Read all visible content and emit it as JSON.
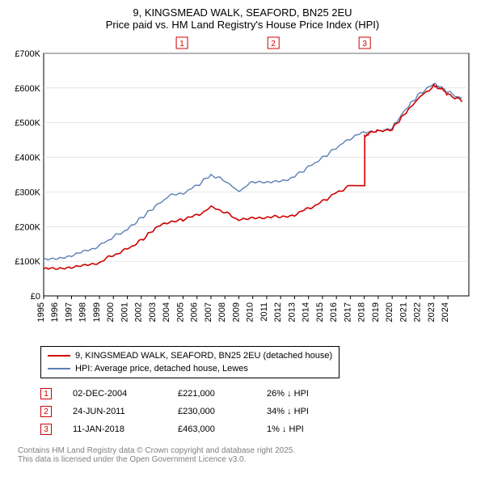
{
  "title_line1": "9, KINGSMEAD WALK, SEAFORD, BN25 2EU",
  "title_line2": "Price paid vs. HM Land Registry's House Price Index (HPI)",
  "chart": {
    "type": "line",
    "background_color": "#ffffff",
    "grid_color": "#d8d8d8",
    "axis_color": "#000000",
    "xlim": [
      1995,
      2025.5
    ],
    "ylim": [
      0,
      700000
    ],
    "ytick_step": 100000,
    "ytick_labels": [
      "£0",
      "£100K",
      "£200K",
      "£300K",
      "£400K",
      "£500K",
      "£600K",
      "£700K"
    ],
    "xtick_step": 1,
    "xtick_labels": [
      "1995",
      "1996",
      "1997",
      "1998",
      "1999",
      "2000",
      "2001",
      "2002",
      "2003",
      "2004",
      "2005",
      "2006",
      "2007",
      "2008",
      "2009",
      "2010",
      "2011",
      "2012",
      "2013",
      "2014",
      "2015",
      "2016",
      "2017",
      "2018",
      "2019",
      "2020",
      "2021",
      "2022",
      "2023",
      "2024"
    ],
    "label_fontsize": 11,
    "series": [
      {
        "name": "price_paid",
        "label": "9, KINGSMEAD WALK, SEAFORD, BN25 2EU (detached house)",
        "color": "#d00000",
        "line_width": 1.6,
        "data": [
          [
            1995,
            78000
          ],
          [
            1996,
            77000
          ],
          [
            1997,
            80000
          ],
          [
            1998,
            87000
          ],
          [
            1999,
            97000
          ],
          [
            2000,
            118000
          ],
          [
            2001,
            135000
          ],
          [
            2002,
            160000
          ],
          [
            2003,
            195000
          ],
          [
            2004,
            215000
          ],
          [
            2004.92,
            221000
          ],
          [
            2005,
            220000
          ],
          [
            2006,
            232000
          ],
          [
            2007,
            255000
          ],
          [
            2008,
            243000
          ],
          [
            2009,
            218000
          ],
          [
            2010,
            228000
          ],
          [
            2011,
            225000
          ],
          [
            2011.48,
            230000
          ],
          [
            2012,
            228000
          ],
          [
            2013,
            235000
          ],
          [
            2014,
            252000
          ],
          [
            2015,
            272000
          ],
          [
            2016,
            298000
          ],
          [
            2017,
            318000
          ],
          [
            2018.03,
            463000
          ],
          [
            2018.5,
            472000
          ],
          [
            2019,
            478000
          ],
          [
            2020,
            482000
          ],
          [
            2021,
            530000
          ],
          [
            2022,
            575000
          ],
          [
            2023,
            605000
          ],
          [
            2023.5,
            598000
          ],
          [
            2024,
            583000
          ],
          [
            2025,
            562000
          ]
        ]
      },
      {
        "name": "hpi",
        "label": "HPI: Average price, detached house, Lewes",
        "color": "#5b7fb5",
        "line_width": 1.4,
        "data": [
          [
            1995,
            108000
          ],
          [
            1996,
            110000
          ],
          [
            1997,
            117000
          ],
          [
            1998,
            128000
          ],
          [
            1999,
            145000
          ],
          [
            2000,
            170000
          ],
          [
            2001,
            192000
          ],
          [
            2002,
            225000
          ],
          [
            2003,
            258000
          ],
          [
            2004,
            288000
          ],
          [
            2005,
            297000
          ],
          [
            2006,
            318000
          ],
          [
            2007,
            350000
          ],
          [
            2008,
            332000
          ],
          [
            2009,
            302000
          ],
          [
            2010,
            330000
          ],
          [
            2011,
            325000
          ],
          [
            2012,
            330000
          ],
          [
            2013,
            345000
          ],
          [
            2014,
            372000
          ],
          [
            2015,
            398000
          ],
          [
            2016,
            428000
          ],
          [
            2017,
            455000
          ],
          [
            2018,
            472000
          ],
          [
            2019,
            478000
          ],
          [
            2020,
            485000
          ],
          [
            2021,
            540000
          ],
          [
            2022,
            585000
          ],
          [
            2023,
            612000
          ],
          [
            2023.5,
            602000
          ],
          [
            2024,
            588000
          ],
          [
            2025,
            570000
          ]
        ]
      }
    ],
    "markers": [
      {
        "n": "1",
        "x": 2004.92
      },
      {
        "n": "2",
        "x": 2011.48
      },
      {
        "n": "3",
        "x": 2018.03
      }
    ]
  },
  "legend": {
    "items": [
      {
        "color": "#d00000",
        "label": "9, KINGSMEAD WALK, SEAFORD, BN25 2EU (detached house)"
      },
      {
        "color": "#5b7fb5",
        "label": "HPI: Average price, detached house, Lewes"
      }
    ]
  },
  "events": [
    {
      "n": "1",
      "date": "02-DEC-2004",
      "price": "£221,000",
      "delta": "26% ↓ HPI"
    },
    {
      "n": "2",
      "date": "24-JUN-2011",
      "price": "£230,000",
      "delta": "34% ↓ HPI"
    },
    {
      "n": "3",
      "date": "11-JAN-2018",
      "price": "£463,000",
      "delta": "1% ↓ HPI"
    }
  ],
  "footer_line1": "Contains HM Land Registry data © Crown copyright and database right 2025.",
  "footer_line2": "This data is licensed under the Open Government Licence v3.0."
}
